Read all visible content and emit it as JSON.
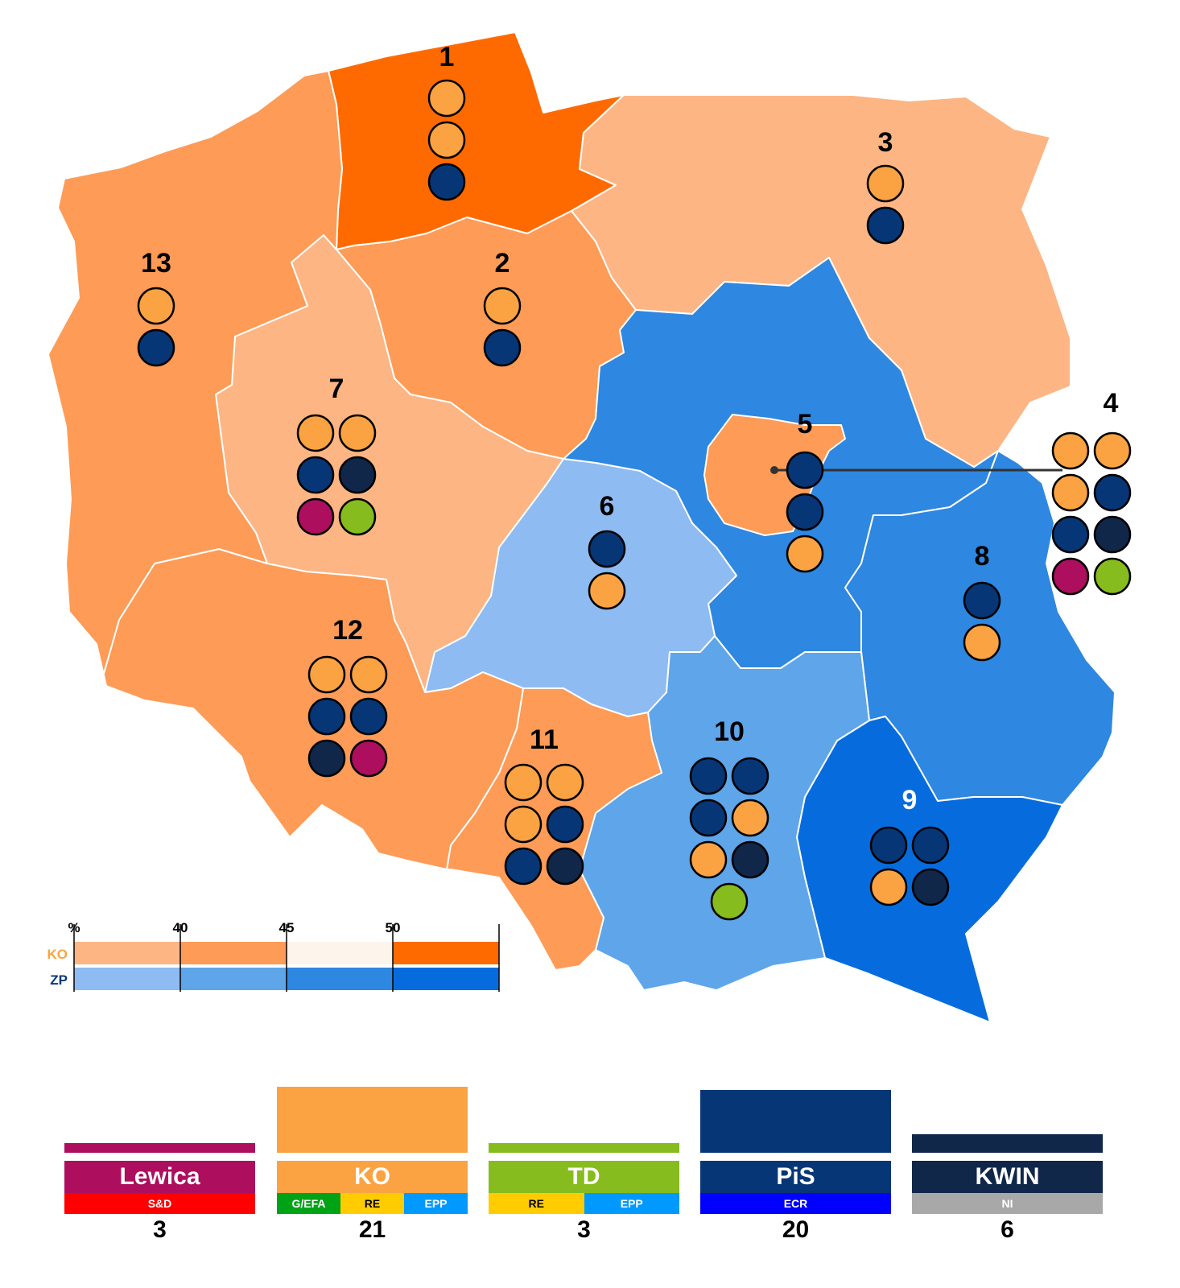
{
  "regions": [
    {
      "id": "1",
      "label": "1",
      "fill": "#ff6a00",
      "label_color": "#000000",
      "mep": [
        "KO",
        "KO",
        "PiS"
      ]
    },
    {
      "id": "2",
      "label": "2",
      "fill": "#fd9b57",
      "label_color": "#000000",
      "mep": [
        "KO",
        "PiS"
      ]
    },
    {
      "id": "3",
      "label": "3",
      "fill": "#fdb584",
      "label_color": "#000000",
      "mep": [
        "KO",
        "PiS"
      ]
    },
    {
      "id": "4",
      "label": "4",
      "fill": "#2e87e0",
      "label_color": "#000000",
      "mep": [
        "KO",
        "KO",
        "KO",
        "PiS",
        "PiS",
        "KWIN",
        "Lewica",
        "TD"
      ]
    },
    {
      "id": "5",
      "label": "5",
      "fill": "#fd9b57",
      "label_color": "#000000",
      "mep": [
        "PiS",
        "PiS",
        "KO"
      ]
    },
    {
      "id": "6",
      "label": "6",
      "fill": "#8ebbf2",
      "label_color": "#000000",
      "mep": [
        "PiS",
        "KO"
      ]
    },
    {
      "id": "7",
      "label": "7",
      "fill": "#fdb584",
      "label_color": "#000000",
      "mep": [
        "KO",
        "KO",
        "PiS",
        "KWIN",
        "Lewica",
        "TD"
      ]
    },
    {
      "id": "8",
      "label": "8",
      "fill": "#2e87e0",
      "label_color": "#000000",
      "mep": [
        "PiS",
        "KO"
      ]
    },
    {
      "id": "9",
      "label": "9",
      "fill": "#066cdd",
      "label_color": "#ffffff",
      "mep": [
        "PiS",
        "PiS",
        "KO",
        "KWIN"
      ]
    },
    {
      "id": "10",
      "label": "10",
      "fill": "#5ea5ea",
      "label_color": "#000000",
      "mep": [
        "PiS",
        "PiS",
        "PiS",
        "KO",
        "KO",
        "KWIN",
        "TD"
      ]
    },
    {
      "id": "11",
      "label": "11",
      "fill": "#fd9b57",
      "label_color": "#000000",
      "mep": [
        "KO",
        "KO",
        "KO",
        "PiS",
        "PiS",
        "KWIN"
      ]
    },
    {
      "id": "12",
      "label": "12",
      "fill": "#fd9b57",
      "label_color": "#000000",
      "mep": [
        "KO",
        "KO",
        "PiS",
        "PiS",
        "KWIN",
        "Lewica"
      ]
    },
    {
      "id": "13",
      "label": "13",
      "fill": "#fd9b57",
      "label_color": "#000000",
      "mep": [
        "KO",
        "PiS"
      ]
    }
  ],
  "party_colors": {
    "KO": "#fba342",
    "PiS": "#073677",
    "KWIN": "#10274a",
    "Lewica": "#ad0e5e",
    "TD": "#87bc1e"
  },
  "legend": {
    "unit_label": "%",
    "ticks": [
      "40",
      "45",
      "50"
    ],
    "rows": [
      {
        "label": "KO",
        "label_color": "#fba342",
        "colors": [
          "#fdb584",
          "#fd9b57",
          "#fdf4eb",
          "#ff6a00"
        ]
      },
      {
        "label": "ZP",
        "label_color": "#073677",
        "colors": [
          "#8ebbf2",
          "#5ea5ea",
          "#2e87e0",
          "#066cdd"
        ]
      }
    ]
  },
  "parties": [
    {
      "name": "Lewica",
      "seats": 3,
      "color": "#ad0e5e",
      "groups": [
        {
          "name": "S&D",
          "bg": "#ff0000",
          "fg": "#ffffff",
          "share": 1
        }
      ]
    },
    {
      "name": "KO",
      "seats": 21,
      "color": "#fba342",
      "groups": [
        {
          "name": "G/EFA",
          "bg": "#00a316",
          "fg": "#ffffff",
          "share": 1
        },
        {
          "name": "RE",
          "bg": "#ffcc00",
          "fg": "#000000",
          "share": 1
        },
        {
          "name": "EPP",
          "bg": "#0099ff",
          "fg": "#ffffff",
          "share": 1
        }
      ]
    },
    {
      "name": "TD",
      "seats": 3,
      "color": "#87bc1e",
      "groups": [
        {
          "name": "RE",
          "bg": "#ffcc00",
          "fg": "#000000",
          "share": 1
        },
        {
          "name": "EPP",
          "bg": "#0099ff",
          "fg": "#ffffff",
          "share": 1
        }
      ]
    },
    {
      "name": "PiS",
      "seats": 20,
      "color": "#073677",
      "groups": [
        {
          "name": "ECR",
          "bg": "#0000ff",
          "fg": "#ffffff",
          "share": 1
        }
      ]
    },
    {
      "name": "KWIN",
      "seats": 6,
      "color": "#10274a",
      "groups": [
        {
          "name": "NI",
          "bg": "#a8a8a8",
          "fg": "#ffffff",
          "share": 1
        }
      ]
    }
  ]
}
